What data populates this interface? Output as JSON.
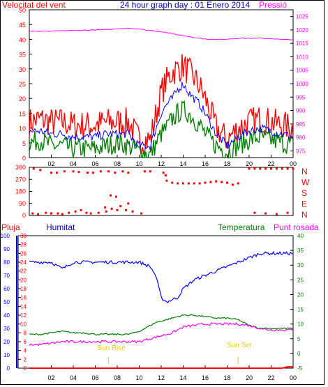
{
  "colors": {
    "wind": "#ff0000",
    "wind_dir": "#ff0000",
    "pressure": "#ff00ff",
    "humidity": "#0000ff",
    "temperature": "#008000",
    "dewpoint": "#ff00ff",
    "rain": "#ff0000",
    "sun_events": "#e8d000",
    "axis": "#000000"
  },
  "top": {
    "left_label": "Velocitat del vent",
    "title": "24 hour graph day : 01 Enero 2014",
    "right_label": "Pressió"
  },
  "bottom": {
    "label_rain": "Pluja",
    "label_humidity": "Humitat",
    "label_temperature": "Temperatura",
    "label_dewpoint": "Punt rosada",
    "sunrise_label": "Sun Rise",
    "sunset_label": "Sun Set"
  },
  "x_ticks": [
    "02",
    "04",
    "06",
    "08",
    "10",
    "12",
    "14",
    "16",
    "18",
    "20",
    "22",
    "00"
  ],
  "chart_data": [
    {
      "type": "line",
      "title": "24 hour graph day : 01 Enero 2014",
      "y_left_label": "Velocitat del vent",
      "y_right_label": "Pressió",
      "y_left_ticks": [
        "0",
        "5",
        "10",
        "15",
        "20",
        "25",
        "30",
        "35",
        "40",
        "45",
        "50"
      ],
      "y_right_ticks": [
        "975",
        "980",
        "985",
        "990",
        "995",
        "1000",
        "1005",
        "1010",
        "1015",
        "1020",
        "1025"
      ],
      "ylim_left": [
        0,
        50
      ],
      "ylim_right": [
        972.5,
        1027.5
      ],
      "x_hours": [
        0,
        1,
        2,
        3,
        4,
        5,
        6,
        7,
        8,
        9,
        10,
        11,
        12,
        12.5,
        13,
        13.5,
        14,
        14.5,
        15,
        15.5,
        16,
        17,
        18,
        19,
        20,
        21,
        22,
        23,
        24
      ],
      "series": [
        {
          "key": "gust",
          "axis": "left",
          "values": [
            12,
            13,
            12,
            12,
            11,
            11,
            11,
            12,
            12,
            12,
            6,
            6,
            22,
            26,
            29,
            30,
            31,
            29,
            27,
            24,
            20,
            10,
            6,
            10,
            12,
            13,
            12,
            11,
            10
          ]
        },
        {
          "key": "avg",
          "axis": "left",
          "values": [
            9,
            9,
            8,
            8,
            7,
            7,
            7,
            8,
            8,
            8,
            4,
            4,
            15,
            18,
            20,
            23,
            25,
            22,
            20,
            18,
            15,
            8,
            4,
            7,
            9,
            10,
            9,
            8,
            7
          ]
        },
        {
          "key": "min",
          "axis": "left",
          "values": [
            5,
            6,
            4,
            4,
            3,
            3,
            3,
            4,
            5,
            4,
            2,
            1,
            8,
            10,
            13,
            15,
            16,
            15,
            13,
            11,
            8,
            4,
            2,
            4,
            6,
            7,
            6,
            5,
            4
          ]
        },
        {
          "key": "pressure",
          "axis": "right",
          "values": [
            1019.5,
            1019.5,
            1019.5,
            1019.7,
            1019.8,
            1019.9,
            1020,
            1020.1,
            1020.4,
            1020.7,
            1020.3,
            1019.8,
            1019.4,
            1019,
            1018.6,
            1018.2,
            1017.9,
            1017.6,
            1017.2,
            1016.9,
            1016.6,
            1016.4,
            1016.6,
            1016.9,
            1016.9,
            1016.9,
            1016.8,
            1016.4,
            1016.4
          ]
        }
      ]
    },
    {
      "type": "scatter",
      "y_ticks": [
        "360",
        "270",
        "180",
        "90",
        "0"
      ],
      "y_right_labels": [
        "N",
        "W",
        "S",
        "E",
        "N"
      ],
      "ylim": [
        0,
        360
      ],
      "points": [
        [
          0.4,
          350
        ],
        [
          1,
          340
        ],
        [
          2,
          320
        ],
        [
          2.5,
          320
        ],
        [
          3.2,
          330
        ],
        [
          4,
          330
        ],
        [
          4.5,
          325
        ],
        [
          5.3,
          320
        ],
        [
          5.8,
          320
        ],
        [
          6.5,
          330
        ],
        [
          7.2,
          330
        ],
        [
          7.8,
          320
        ],
        [
          8.5,
          330
        ],
        [
          9,
          320
        ],
        [
          10.5,
          330
        ],
        [
          11,
          330
        ],
        [
          0.3,
          15
        ],
        [
          0.8,
          10
        ],
        [
          1.5,
          20
        ],
        [
          2,
          15
        ],
        [
          2.6,
          15
        ],
        [
          3,
          10
        ],
        [
          3.6,
          20
        ],
        [
          4.2,
          30
        ],
        [
          4.7,
          40
        ],
        [
          5.2,
          20
        ],
        [
          5.6,
          15
        ],
        [
          6.3,
          20
        ],
        [
          7,
          30
        ],
        [
          7.5,
          50
        ],
        [
          8,
          40
        ],
        [
          8.8,
          40
        ],
        [
          9.4,
          30
        ],
        [
          10.2,
          15
        ],
        [
          7.4,
          150
        ],
        [
          7.9,
          140
        ],
        [
          6.9,
          60
        ],
        [
          8.3,
          70
        ],
        [
          9,
          90
        ],
        [
          12.5,
          260
        ],
        [
          13,
          245
        ],
        [
          13.5,
          240
        ],
        [
          14,
          240
        ],
        [
          14.5,
          240
        ],
        [
          15,
          240
        ],
        [
          15.5,
          240
        ],
        [
          16,
          245
        ],
        [
          16.5,
          250
        ],
        [
          17,
          255
        ],
        [
          17.5,
          250
        ],
        [
          18,
          245
        ],
        [
          18.5,
          230
        ],
        [
          19,
          240
        ],
        [
          20,
          350
        ],
        [
          20.5,
          350
        ],
        [
          21,
          350
        ],
        [
          21.5,
          350
        ],
        [
          22,
          350
        ],
        [
          22.5,
          350
        ],
        [
          23,
          350
        ],
        [
          23.5,
          350
        ],
        [
          24,
          350
        ],
        [
          20.5,
          20
        ],
        [
          21.5,
          15
        ],
        [
          22.5,
          10
        ],
        [
          23.5,
          20
        ],
        [
          12.2,
          320
        ],
        [
          12.4,
          300
        ]
      ]
    },
    {
      "type": "line",
      "y_rain_ticks": [
        "0",
        "10",
        "20",
        "30",
        "40",
        "50",
        "60",
        "70",
        "80",
        "90",
        "100"
      ],
      "y_humidity_ticks": [
        "0",
        "2",
        "4",
        "6",
        "8",
        "10",
        "12",
        "14",
        "16",
        "18",
        "20",
        "22",
        "24",
        "26",
        "28",
        "30"
      ],
      "y_temp_ticks": [
        "-5",
        "0",
        "5",
        "10",
        "15",
        "20",
        "25",
        "30",
        "35",
        "40"
      ],
      "ylim_humidity": [
        0,
        30
      ],
      "ylim_temp": [
        -5,
        40
      ],
      "x_hours": [
        0,
        0.5,
        1,
        2,
        3,
        4,
        5,
        6,
        7,
        8,
        9,
        10,
        11,
        11.5,
        12,
        12.5,
        13,
        13.5,
        14,
        15,
        16,
        17,
        18,
        19,
        20,
        21,
        22,
        22.5,
        23,
        23.5,
        24
      ],
      "series": [
        {
          "key": "humidity",
          "axis": "humidity",
          "values": [
            24,
            24,
            24,
            24,
            22.5,
            24,
            24,
            24,
            24,
            24,
            24,
            24,
            23,
            21,
            16,
            15,
            15.5,
            16,
            18,
            20,
            21,
            22,
            23,
            24,
            25,
            26,
            26,
            26,
            26,
            26,
            26
          ]
        },
        {
          "key": "temperature",
          "axis": "temp",
          "values": [
            6.5,
            6.5,
            6.5,
            7,
            7.5,
            7,
            7,
            6.5,
            6.5,
            6.5,
            6.5,
            7.5,
            9.5,
            10.5,
            11,
            11.5,
            12,
            12.5,
            13,
            13,
            12.5,
            12,
            12,
            11.5,
            9.5,
            8.5,
            8.5,
            8.5,
            8.5,
            8.5,
            8.5
          ]
        },
        {
          "key": "dewpoint",
          "axis": "temp",
          "values": [
            3,
            3,
            3,
            3.5,
            4,
            4,
            4,
            4,
            4,
            4,
            4,
            4,
            5,
            5.5,
            6,
            6.5,
            7,
            8,
            9,
            9.5,
            10,
            10,
            10,
            10,
            9.5,
            8.5,
            8,
            8,
            8,
            8,
            8
          ]
        },
        {
          "key": "rain",
          "axis": "humidity",
          "values": [
            0,
            0,
            0,
            0,
            0,
            0,
            0,
            0,
            0,
            0,
            0,
            0,
            0,
            0,
            0,
            0,
            0,
            0,
            0,
            0,
            0,
            0,
            0,
            0,
            0,
            0,
            0,
            0,
            0,
            0.3,
            0.3
          ]
        }
      ],
      "sunrise_hour": 7.2,
      "sunset_hour": 19.0
    }
  ]
}
